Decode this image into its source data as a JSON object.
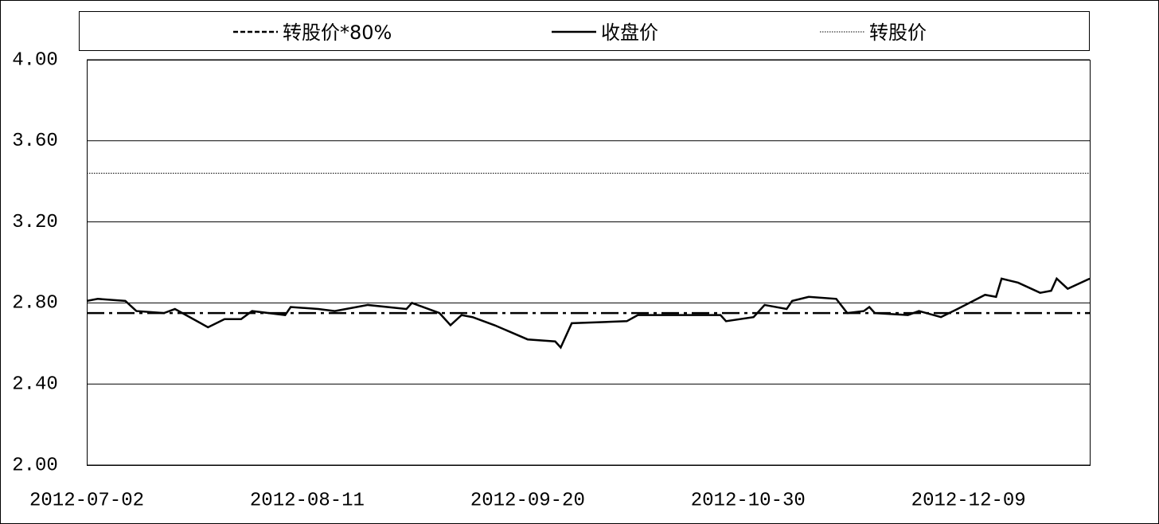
{
  "chart_data": {
    "type": "line",
    "x": [
      "2012-07-02",
      "2012-07-04",
      "2012-07-09",
      "2012-07-11",
      "2012-07-16",
      "2012-07-18",
      "2012-07-24",
      "2012-07-27",
      "2012-07-30",
      "2012-08-01",
      "2012-08-07",
      "2012-08-08",
      "2012-08-13",
      "2012-08-16",
      "2012-08-20",
      "2012-08-22",
      "2012-08-29",
      "2012-08-30",
      "2012-09-04",
      "2012-09-06",
      "2012-09-08",
      "2012-09-10",
      "2012-09-14",
      "2012-09-20",
      "2012-09-25",
      "2012-09-26",
      "2012-09-28",
      "2012-10-08",
      "2012-10-10",
      "2012-10-19",
      "2012-10-25",
      "2012-10-26",
      "2012-10-31",
      "2012-11-02",
      "2012-11-06",
      "2012-11-07",
      "2012-11-10",
      "2012-11-15",
      "2012-11-17",
      "2012-11-20",
      "2012-11-21",
      "2012-11-22",
      "2012-11-28",
      "2012-11-30",
      "2012-12-04",
      "2012-12-07",
      "2012-12-12",
      "2012-12-14",
      "2012-12-15",
      "2012-12-18",
      "2012-12-22",
      "2012-12-24",
      "2012-12-25",
      "2012-12-27",
      "2012-12-31"
    ],
    "series": [
      {
        "name": "转股价*80%",
        "color": "#000000",
        "style": "dashdot",
        "value": 2.75
      },
      {
        "name": "收盘价",
        "color": "#000000",
        "style": "solid",
        "values": [
          2.81,
          2.82,
          2.81,
          2.76,
          2.75,
          2.77,
          2.68,
          2.72,
          2.72,
          2.76,
          2.74,
          2.78,
          2.77,
          2.76,
          2.78,
          2.79,
          2.77,
          2.8,
          2.75,
          2.69,
          2.74,
          2.73,
          2.69,
          2.62,
          2.61,
          2.58,
          2.7,
          2.71,
          2.74,
          2.74,
          2.74,
          2.71,
          2.73,
          2.79,
          2.77,
          2.81,
          2.83,
          2.82,
          2.75,
          2.76,
          2.78,
          2.75,
          2.74,
          2.76,
          2.73,
          2.77,
          2.84,
          2.83,
          2.92,
          2.9,
          2.85,
          2.86,
          2.92,
          2.87,
          2.92
        ]
      },
      {
        "name": "转股价",
        "color": "#000000",
        "style": "dotted",
        "value": 3.44
      }
    ],
    "xlim": [
      "2012-07-02",
      "2012-12-31"
    ],
    "xticks": [
      "2012-07-02",
      "2012-08-11",
      "2012-09-20",
      "2012-10-30",
      "2012-12-09"
    ],
    "ylim": [
      2,
      4
    ],
    "yticks": [
      {
        "value": 2,
        "label": "2.00"
      },
      {
        "value": 2.4,
        "label": "2.40"
      },
      {
        "value": 2.8,
        "label": "2.80"
      },
      {
        "value": 3.2,
        "label": "3.20"
      },
      {
        "value": 3.6,
        "label": "3.60"
      },
      {
        "value": 4,
        "label": "4.00"
      }
    ],
    "grid": true
  }
}
